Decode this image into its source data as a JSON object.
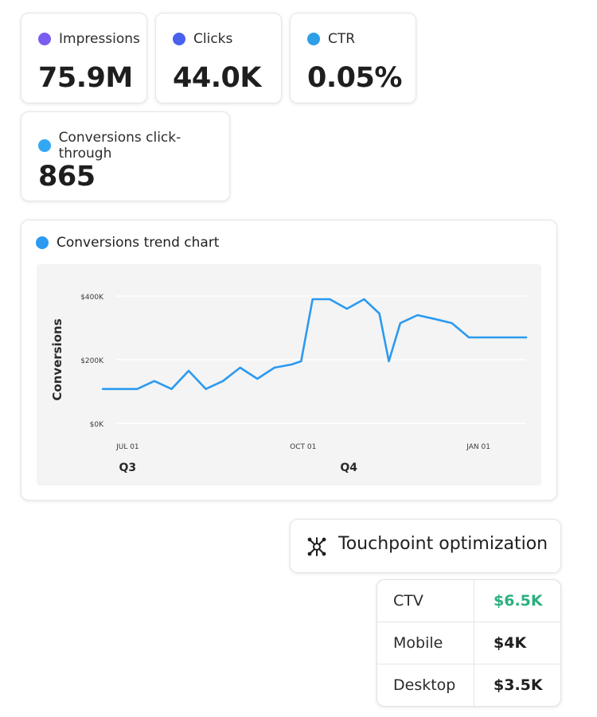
{
  "metrics": [
    {
      "label": "Impressions",
      "value": "75.9M",
      "dot_color": "#7b5cf0"
    },
    {
      "label": "Clicks",
      "value": "44.0K",
      "dot_color": "#4a60ef"
    },
    {
      "label": "CTR",
      "value": "0.05%",
      "dot_color": "#2d9ee8"
    },
    {
      "label": "Conversions click-through",
      "value": "865",
      "dot_color": "#32a8f5"
    }
  ],
  "trend_card": {
    "title": "Conversions trend chart",
    "dot_color": "#2b9af0"
  },
  "chart_data": {
    "type": "line",
    "title": "",
    "ylabel": "Conversions",
    "xlabel": "",
    "ylim": [
      0,
      400000
    ],
    "yticks": [
      {
        "value": 0,
        "label": "$0K"
      },
      {
        "value": 200000,
        "label": "$200K"
      },
      {
        "value": 400000,
        "label": "$400K"
      }
    ],
    "xlim": [
      "2022-06-25",
      "2023-01-26"
    ],
    "xticks": [
      {
        "value": "2022-07-01",
        "label": "JUL 01"
      },
      {
        "value": "2022-10-01",
        "label": "OCT 01"
      },
      {
        "value": "2023-01-01",
        "label": "JAN 01"
      }
    ],
    "quarter_labels": [
      {
        "value": "2022-07-01",
        "label": "Q3"
      },
      {
        "value": "2022-10-25",
        "label": "Q4"
      }
    ],
    "grid": true,
    "line_color": "#2b9af0",
    "series": [
      {
        "x": [
          "2022-06-18",
          "2022-06-27",
          "2022-07-06",
          "2022-07-15",
          "2022-07-24",
          "2022-08-02",
          "2022-08-11",
          "2022-08-20",
          "2022-08-29",
          "2022-09-07",
          "2022-09-16",
          "2022-09-25",
          "2022-09-30",
          "2022-10-06",
          "2022-10-15",
          "2022-10-24",
          "2022-11-02",
          "2022-11-10",
          "2022-11-15",
          "2022-11-21",
          "2022-11-30",
          "2022-12-09",
          "2022-12-18",
          "2022-12-27",
          "2023-01-05",
          "2023-01-14",
          "2023-01-26"
        ],
        "y": [
          108000,
          108000,
          108000,
          133000,
          108000,
          165000,
          108000,
          133000,
          175000,
          140000,
          175000,
          185000,
          195000,
          390000,
          390000,
          360000,
          390000,
          345000,
          195000,
          315000,
          340000,
          328000,
          315000,
          270000,
          270000,
          270000,
          270000
        ]
      }
    ]
  },
  "touchpoint": {
    "label": "Touchpoint optimization",
    "icon": "network-hub-icon"
  },
  "channels": [
    {
      "name": "CTV",
      "value": "$6.5K",
      "color": "#2bb07f"
    },
    {
      "name": "Mobile",
      "value": "$4K",
      "color": "#1f1f1f"
    },
    {
      "name": "Desktop",
      "value": "$3.5K",
      "color": "#1f1f1f"
    }
  ]
}
